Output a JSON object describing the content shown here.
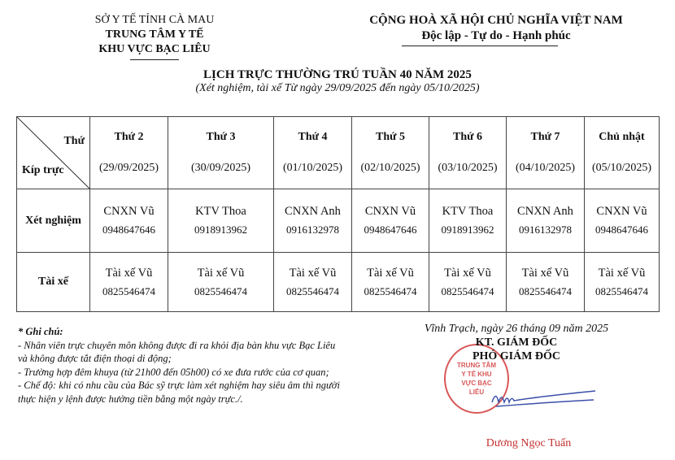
{
  "header_left": [
    "SỞ Y TẾ TỈNH CÀ MAU",
    "TRUNG TÂM Y TẾ",
    "KHU VỰC BẠC LIÊU"
  ],
  "header_right": [
    "CỘNG HOÀ XÃ HỘI CHỦ NGHĨA VIỆT NAM",
    "Độc lập - Tự do - Hạnh phúc"
  ],
  "title": "LỊCH TRỰC THƯỜNG TRÚ TUẦN 40 NĂM 2025",
  "subtitle": "(Xét nghiệm, tài xế Từ ngày 29/09/2025 đến ngày 05/10/2025)",
  "table": {
    "corner_top": "Thứ",
    "corner_bottom": "Kíp trực",
    "days": [
      {
        "day": "Thứ 2",
        "date": "(29/09/2025)"
      },
      {
        "day": "Thứ 3",
        "date": "(30/09/2025)"
      },
      {
        "day": "Thứ 4",
        "date": "(01/10/2025)"
      },
      {
        "day": "Thứ 5",
        "date": "(02/10/2025)"
      },
      {
        "day": "Thứ 6",
        "date": "(03/10/2025)"
      },
      {
        "day": "Thứ 7",
        "date": "(04/10/2025)"
      },
      {
        "day": "Chủ nhật",
        "date": "(05/10/2025)"
      }
    ],
    "rows": [
      {
        "label": "Xét nghiệm",
        "cells": [
          {
            "name": "CNXN Vũ",
            "phone": "0948647646"
          },
          {
            "name": "KTV Thoa",
            "phone": "0918913962"
          },
          {
            "name": "CNXN Anh",
            "phone": "0916132978"
          },
          {
            "name": "CNXN Vũ",
            "phone": "0948647646"
          },
          {
            "name": "KTV Thoa",
            "phone": "0918913962"
          },
          {
            "name": "CNXN Anh",
            "phone": "0916132978"
          },
          {
            "name": "CNXN Vũ",
            "phone": "0948647646"
          }
        ]
      },
      {
        "label": "Tài xế",
        "cells": [
          {
            "name": "Tài xế Vũ",
            "phone": "0825546474"
          },
          {
            "name": "Tài xế Vũ",
            "phone": "0825546474"
          },
          {
            "name": "Tài xế Vũ",
            "phone": "0825546474"
          },
          {
            "name": "Tài xế Vũ",
            "phone": "0825546474"
          },
          {
            "name": "Tài xế Vũ",
            "phone": "0825546474"
          },
          {
            "name": "Tài xế Vũ",
            "phone": "0825546474"
          },
          {
            "name": "Tài xế Vũ",
            "phone": "0825546474"
          }
        ]
      }
    ]
  },
  "notes": {
    "heading": "* Ghi chú:",
    "lines": [
      "- Nhân viên trực chuyên môn không được đi ra khỏi địa bàn khu vực Bạc Liêu",
      "và không được tắt điện thoại di động;",
      "- Trường hợp đêm khuya (từ 21h00 đến 05h00) có xe đưa rước của cơ quan;",
      "- Chế độ: khi có nhu cầu của Bác sỹ trực làm xét nghiệm hay siêu âm thì người",
      "thực hiện y lệnh được hưởng tiền bằng một ngày trực./."
    ]
  },
  "signature": {
    "place_date": "Vĩnh Trạch, ngày 26 tháng 09 năm 2025",
    "role1": "KT. GIÁM ĐỐC",
    "role2": "PHÓ GIÁM ĐỐC",
    "name": "Dương Ngọc Tuấn"
  },
  "stamp": {
    "text": "TRUNG TÂM Y TẾ KHU VỰC BẠC LIÊU",
    "color": "#d23a3a"
  }
}
